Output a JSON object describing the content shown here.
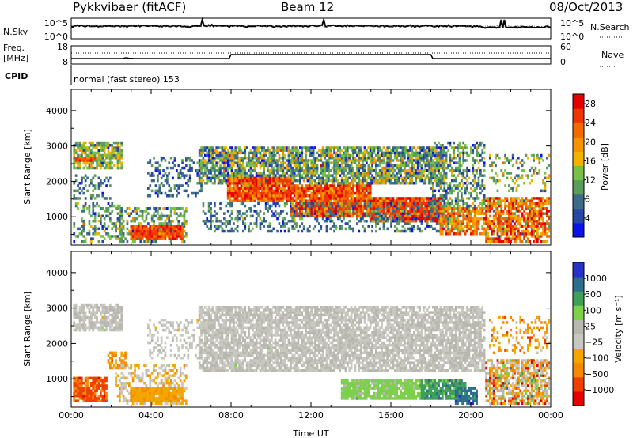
{
  "header": {
    "title": "Pykkvibaer (fitACF)",
    "beam": "Beam 12",
    "date": "08/Oct/2013"
  },
  "panels": {
    "nsky": {
      "label": "N.Sky",
      "ticks": [
        "10^5",
        "10^0"
      ]
    },
    "nsearch": {
      "label": "N.Search",
      "ticks": [
        "10^5",
        "10^0"
      ]
    },
    "freq": {
      "label_line1": "Freq.",
      "label_line2": "[MHz]",
      "ticks": [
        "18",
        "8"
      ]
    },
    "nave": {
      "label": "Nave",
      "ticks": [
        "60",
        "0"
      ]
    },
    "cpid": {
      "label": "CPID",
      "text": "normal (fast stereo) 153"
    }
  },
  "colors": {
    "power": [
      "#0a14e6",
      "#2747a5",
      "#3e6a8a",
      "#5a9c5a",
      "#79c146",
      "#f0b400",
      "#f59300",
      "#f26a00",
      "#ee3600",
      "#e60000"
    ],
    "velocity": [
      "#e60000",
      "#ee4100",
      "#f58900",
      "#f5a500",
      "#c8c8c0",
      "#b8b8b0",
      "#7cd04a",
      "#3fa05a",
      "#2d6e8a",
      "#2832c8"
    ]
  },
  "chart_data": [
    {
      "type": "heatmap",
      "title": "Power",
      "ylabel": "Slant Range [km]",
      "xlabel": "",
      "x_ticks": [
        "00:00",
        "04:00",
        "08:00",
        "12:00",
        "16:00",
        "20:00",
        "00:00"
      ],
      "y_ticks": [
        "1000",
        "2000",
        "3000",
        "4000"
      ],
      "xlim_hours": [
        0,
        24
      ],
      "ylim_km": [
        200,
        4600
      ],
      "colorbar": {
        "label": "Power [dB]",
        "ticks": [
          "4",
          "8",
          "12",
          "16",
          "20",
          "24",
          "28"
        ],
        "range": [
          0,
          30
        ]
      },
      "regions": [
        {
          "t0": 0.1,
          "t1": 2.6,
          "r0": 2350,
          "r1": 3150,
          "v": 13,
          "sigma": 4,
          "density": 0.75
        },
        {
          "t0": 0.2,
          "t1": 1.2,
          "r0": 2550,
          "r1": 2750,
          "v": 23,
          "sigma": 3,
          "density": 0.9
        },
        {
          "t0": 0.1,
          "t1": 2.5,
          "r0": 300,
          "r1": 1400,
          "v": 10,
          "sigma": 4,
          "density": 0.35
        },
        {
          "t0": 0.1,
          "t1": 2.0,
          "r0": 1500,
          "r1": 2200,
          "v": 8,
          "sigma": 3,
          "density": 0.3
        },
        {
          "t0": 2.2,
          "t1": 5.8,
          "r0": 300,
          "r1": 1300,
          "v": 11,
          "sigma": 4,
          "density": 0.45
        },
        {
          "t0": 3.0,
          "t1": 5.6,
          "r0": 350,
          "r1": 800,
          "v": 25,
          "sigma": 3,
          "density": 0.95
        },
        {
          "t0": 3.8,
          "t1": 6.6,
          "r0": 1600,
          "r1": 2700,
          "v": 7,
          "sigma": 3,
          "density": 0.3
        },
        {
          "t0": 6.4,
          "t1": 18.8,
          "r0": 1900,
          "r1": 3000,
          "v": 11,
          "sigma": 5,
          "density": 0.8
        },
        {
          "t0": 7.8,
          "t1": 11.0,
          "r0": 1450,
          "r1": 2150,
          "v": 24,
          "sigma": 4,
          "density": 0.95
        },
        {
          "t0": 11.0,
          "t1": 15.0,
          "r0": 1000,
          "r1": 1900,
          "v": 24,
          "sigma": 4,
          "density": 0.95
        },
        {
          "t0": 15.0,
          "t1": 18.6,
          "r0": 850,
          "r1": 1550,
          "v": 25,
          "sigma": 4,
          "density": 0.95
        },
        {
          "t0": 6.6,
          "t1": 20.0,
          "r0": 550,
          "r1": 1400,
          "v": 8,
          "sigma": 3,
          "density": 0.35
        },
        {
          "t0": 18.0,
          "t1": 20.8,
          "r0": 1200,
          "r1": 3150,
          "v": 10,
          "sigma": 4,
          "density": 0.5
        },
        {
          "t0": 18.5,
          "t1": 20.8,
          "r0": 500,
          "r1": 1300,
          "v": 21,
          "sigma": 4,
          "density": 0.8
        },
        {
          "t0": 20.8,
          "t1": 24.0,
          "r0": 250,
          "r1": 1600,
          "v": 22,
          "sigma": 6,
          "density": 0.75
        },
        {
          "t0": 21.0,
          "t1": 24.0,
          "r0": 1700,
          "r1": 2800,
          "v": 13,
          "sigma": 4,
          "density": 0.25
        }
      ]
    },
    {
      "type": "heatmap",
      "title": "Velocity",
      "ylabel": "Slant Range [km]",
      "xlabel": "Time UT",
      "x_ticks": [
        "00:00",
        "04:00",
        "08:00",
        "12:00",
        "16:00",
        "20:00",
        "00:00"
      ],
      "y_ticks": [
        "1000",
        "2000",
        "3000",
        "4000"
      ],
      "xlim_hours": [
        0,
        24
      ],
      "ylim_km": [
        200,
        4600
      ],
      "colorbar": {
        "label": "Velocity [m s⁻¹]",
        "ticks": [
          "1000",
          "500",
          "100",
          "25",
          "−25",
          "−100",
          "−500",
          "−1000"
        ]
      },
      "regions": [
        {
          "t0": 0.1,
          "t1": 2.6,
          "r0": 2350,
          "r1": 3150,
          "v": 5,
          "sigma": 0.4,
          "density": 0.75
        },
        {
          "t0": 0.1,
          "t1": 1.8,
          "r0": 350,
          "r1": 1100,
          "v": 1.8,
          "sigma": 0.4,
          "density": 0.85
        },
        {
          "t0": 1.8,
          "t1": 2.8,
          "r0": 1300,
          "r1": 1800,
          "v": 3,
          "sigma": 0.6,
          "density": 0.6
        },
        {
          "t0": 2.2,
          "t1": 5.8,
          "r0": 300,
          "r1": 1400,
          "v": 4,
          "sigma": 0.7,
          "density": 0.45
        },
        {
          "t0": 3.0,
          "t1": 5.6,
          "r0": 350,
          "r1": 800,
          "v": 3.2,
          "sigma": 0.3,
          "density": 0.95
        },
        {
          "t0": 3.8,
          "t1": 6.6,
          "r0": 1600,
          "r1": 2700,
          "v": 4.8,
          "sigma": 0.4,
          "density": 0.3
        },
        {
          "t0": 6.4,
          "t1": 20.8,
          "r0": 1200,
          "r1": 3100,
          "v": 5,
          "sigma": 0.3,
          "density": 0.8
        },
        {
          "t0": 13.5,
          "t1": 17.5,
          "r0": 400,
          "r1": 1000,
          "v": 6.3,
          "sigma": 0.3,
          "density": 0.9
        },
        {
          "t0": 17.5,
          "t1": 19.8,
          "r0": 400,
          "r1": 1000,
          "v": 7.5,
          "sigma": 0.6,
          "density": 0.85
        },
        {
          "t0": 19.2,
          "t1": 20.4,
          "r0": 300,
          "r1": 800,
          "v": 8.6,
          "sigma": 0.4,
          "density": 0.8
        },
        {
          "t0": 20.8,
          "t1": 24.0,
          "r0": 250,
          "r1": 1600,
          "v": 4,
          "sigma": 1.8,
          "density": 0.75
        },
        {
          "t0": 21.0,
          "t1": 24.0,
          "r0": 1700,
          "r1": 2800,
          "v": 3,
          "sigma": 0.9,
          "density": 0.25
        }
      ]
    }
  ]
}
